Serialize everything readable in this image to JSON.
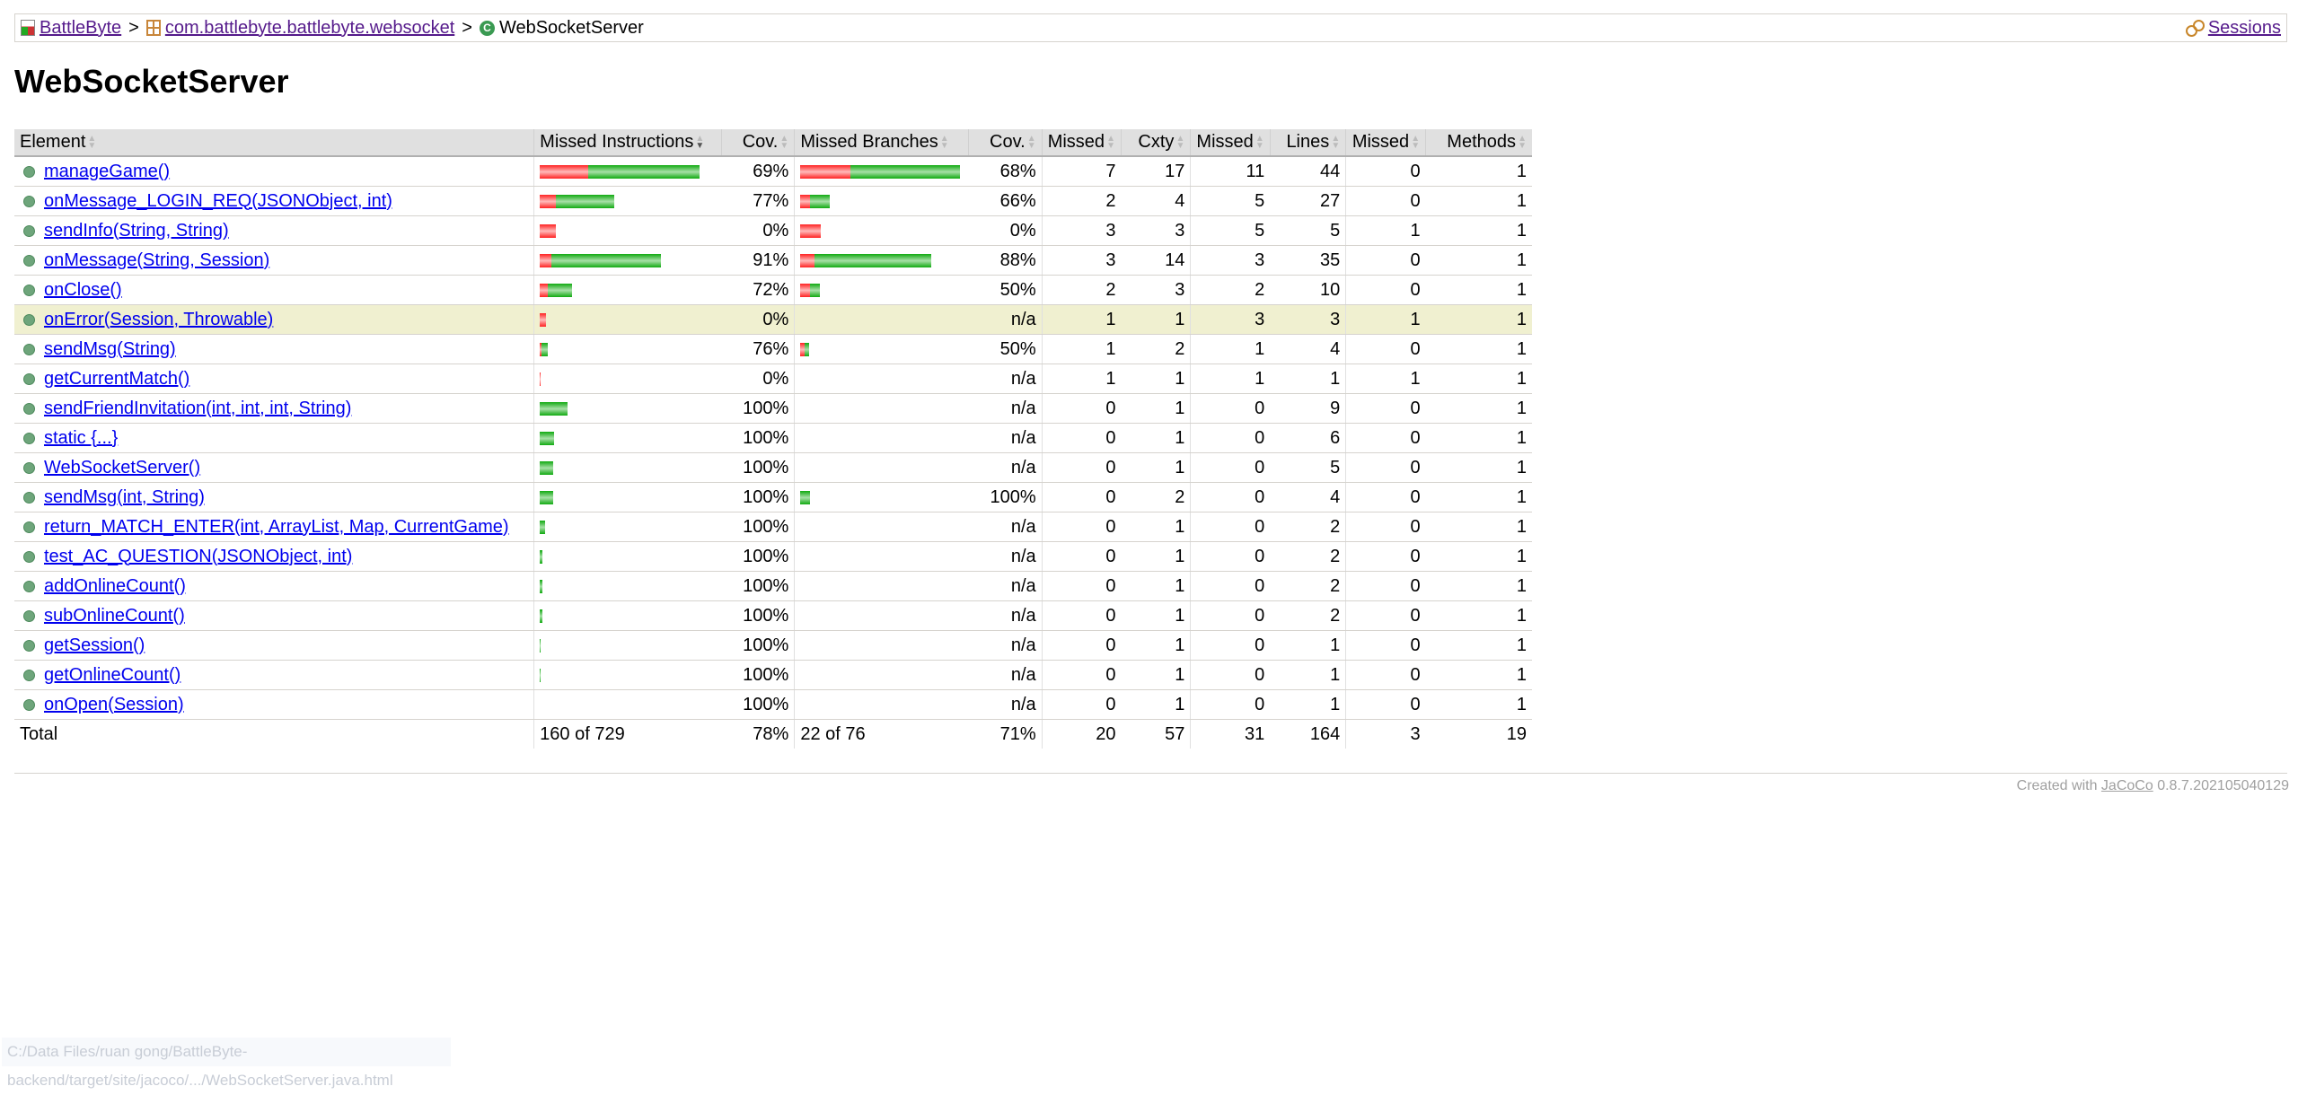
{
  "breadcrumb": {
    "project": "BattleByte",
    "package": "com.battlebyte.battlebyte.websocket",
    "class": "WebSocketServer",
    "sep": ">",
    "sessions": "Sessions"
  },
  "title": "WebSocketServer",
  "columns": [
    "Element",
    "Missed Instructions",
    "Cov.",
    "Missed Branches",
    "Cov.",
    "Missed",
    "Cxty",
    "Missed",
    "Lines",
    "Missed",
    "Methods"
  ],
  "rows": [
    {
      "name": "manageGame()",
      "ibar": [
        0.3,
        0.69
      ],
      "icov": "69%",
      "bbar": [
        0.31,
        0.68
      ],
      "bcov": "68%",
      "mc": "7",
      "cx": "17",
      "ml": "11",
      "ln": "44",
      "mm": "0",
      "mt": "1"
    },
    {
      "name": "onMessage_LOGIN_REQ(JSONObject, int)",
      "ibar": [
        0.1,
        0.36
      ],
      "icov": "77%",
      "bbar": [
        0.06,
        0.12
      ],
      "bcov": "66%",
      "mc": "2",
      "cx": "4",
      "ml": "5",
      "ln": "27",
      "mm": "0",
      "mt": "1"
    },
    {
      "name": "sendInfo(String, String)",
      "ibar": [
        0.1,
        0
      ],
      "icov": "0%",
      "bbar": [
        0.13,
        0
      ],
      "bcov": "0%",
      "mc": "3",
      "cx": "3",
      "ml": "5",
      "ln": "5",
      "mm": "1",
      "mt": "1"
    },
    {
      "name": "onMessage(String, Session)",
      "ibar": [
        0.07,
        0.68
      ],
      "icov": "91%",
      "bbar": [
        0.09,
        0.72
      ],
      "bcov": "88%",
      "mc": "3",
      "cx": "14",
      "ml": "3",
      "ln": "35",
      "mm": "0",
      "mt": "1"
    },
    {
      "name": "onClose()",
      "ibar": [
        0.05,
        0.15
      ],
      "icov": "72%",
      "bbar": [
        0.06,
        0.06
      ],
      "bcov": "50%",
      "mc": "2",
      "cx": "3",
      "ml": "2",
      "ln": "10",
      "mm": "0",
      "mt": "1"
    },
    {
      "name": "onError(Session, Throwable)",
      "ibar": [
        0.04,
        0
      ],
      "icov": "0%",
      "bbar": null,
      "bcov": "n/a",
      "mc": "1",
      "cx": "1",
      "ml": "3",
      "ln": "3",
      "mm": "1",
      "mt": "1",
      "highlight": true
    },
    {
      "name": "sendMsg(String)",
      "ibar": [
        0.012,
        0.04
      ],
      "icov": "76%",
      "bbar": [
        0.03,
        0.03
      ],
      "bcov": "50%",
      "mc": "1",
      "cx": "2",
      "ml": "1",
      "ln": "4",
      "mm": "0",
      "mt": "1"
    },
    {
      "name": "getCurrentMatch()",
      "ibar": [
        0.006,
        0
      ],
      "icov": "0%",
      "bbar": null,
      "bcov": "n/a",
      "mc": "1",
      "cx": "1",
      "ml": "1",
      "ln": "1",
      "mm": "1",
      "mt": "1"
    },
    {
      "name": "sendFriendInvitation(int, int, int, String)",
      "ibar": [
        0,
        0.17
      ],
      "icov": "100%",
      "bbar": null,
      "bcov": "n/a",
      "mc": "0",
      "cx": "1",
      "ml": "0",
      "ln": "9",
      "mm": "0",
      "mt": "1"
    },
    {
      "name": "static {...}",
      "ibar": [
        0,
        0.09
      ],
      "icov": "100%",
      "bbar": null,
      "bcov": "n/a",
      "mc": "0",
      "cx": "1",
      "ml": "0",
      "ln": "6",
      "mm": "0",
      "mt": "1"
    },
    {
      "name": "WebSocketServer()",
      "ibar": [
        0,
        0.085
      ],
      "icov": "100%",
      "bbar": null,
      "bcov": "n/a",
      "mc": "0",
      "cx": "1",
      "ml": "0",
      "ln": "5",
      "mm": "0",
      "mt": "1"
    },
    {
      "name": "sendMsg(int, String)",
      "ibar": [
        0,
        0.085
      ],
      "icov": "100%",
      "bbar": [
        0,
        0.06
      ],
      "bcov": "100%",
      "mc": "0",
      "cx": "2",
      "ml": "0",
      "ln": "4",
      "mm": "0",
      "mt": "1"
    },
    {
      "name": "return_MATCH_ENTER(int, ArrayList, Map, CurrentGame)",
      "ibar": [
        0,
        0.035
      ],
      "icov": "100%",
      "bbar": null,
      "bcov": "n/a",
      "mc": "0",
      "cx": "1",
      "ml": "0",
      "ln": "2",
      "mm": "0",
      "mt": "1"
    },
    {
      "name": "test_AC_QUESTION(JSONObject, int)",
      "ibar": [
        0,
        0.017
      ],
      "icov": "100%",
      "bbar": null,
      "bcov": "n/a",
      "mc": "0",
      "cx": "1",
      "ml": "0",
      "ln": "2",
      "mm": "0",
      "mt": "1"
    },
    {
      "name": "addOnlineCount()",
      "ibar": [
        0,
        0.017
      ],
      "icov": "100%",
      "bbar": null,
      "bcov": "n/a",
      "mc": "0",
      "cx": "1",
      "ml": "0",
      "ln": "2",
      "mm": "0",
      "mt": "1"
    },
    {
      "name": "subOnlineCount()",
      "ibar": [
        0,
        0.017
      ],
      "icov": "100%",
      "bbar": null,
      "bcov": "n/a",
      "mc": "0",
      "cx": "1",
      "ml": "0",
      "ln": "2",
      "mm": "0",
      "mt": "1"
    },
    {
      "name": "getSession()",
      "ibar": [
        0,
        0.006
      ],
      "icov": "100%",
      "bbar": null,
      "bcov": "n/a",
      "mc": "0",
      "cx": "1",
      "ml": "0",
      "ln": "1",
      "mm": "0",
      "mt": "1"
    },
    {
      "name": "getOnlineCount()",
      "ibar": [
        0,
        0.006
      ],
      "icov": "100%",
      "bbar": null,
      "bcov": "n/a",
      "mc": "0",
      "cx": "1",
      "ml": "0",
      "ln": "1",
      "mm": "0",
      "mt": "1"
    },
    {
      "name": "onOpen(Session)",
      "ibar": [
        0,
        0
      ],
      "icov": "100%",
      "bbar": null,
      "bcov": "n/a",
      "mc": "0",
      "cx": "1",
      "ml": "0",
      "ln": "1",
      "mm": "0",
      "mt": "1"
    }
  ],
  "total": {
    "label": "Total",
    "instr": "160 of 729",
    "icov": "78%",
    "branches": "22 of 76",
    "bcov": "71%",
    "mc": "20",
    "cx": "57",
    "ml": "31",
    "ln": "164",
    "mm": "3",
    "mt": "19"
  },
  "footer": {
    "created_prefix": "Created with",
    "jacoco": "JaCoCo",
    "version": "0.8.7.202105040129"
  },
  "status_url": "C:/Data Files/ruan gong/BattleByte-backend/target/site/jacoco/.../WebSocketServer.java.html",
  "colors": {
    "missed": "#ff2222",
    "covered": "#11aa11",
    "highlight": "#f0f0d0",
    "link": "#0000ee",
    "visited": "#551a8b"
  }
}
